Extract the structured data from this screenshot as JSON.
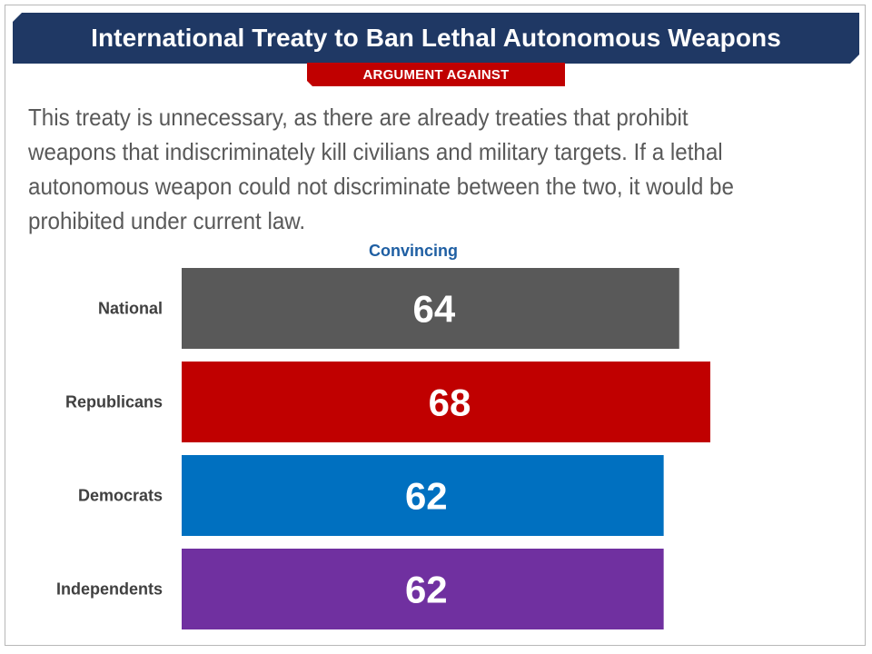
{
  "title": "International Treaty to Ban Lethal Autonomous Weapons",
  "subtitle": "ARGUMENT AGAINST",
  "argument_text": "This treaty is unnecessary, as there are already treaties that prohibit weapons that indiscriminately kill civilians and military targets. If a lethal autonomous weapon could not discriminate between the two, it would be prohibited under current law.",
  "colors": {
    "banner": "#1f3864",
    "tab": "#c00000",
    "header_text": "#1f5fa3"
  },
  "chart_data": {
    "type": "bar",
    "orientation": "horizontal",
    "column_header": "Convincing",
    "categories": [
      "National",
      "Republicans",
      "Democrats",
      "Independents"
    ],
    "values": [
      64,
      68,
      62,
      62
    ],
    "colors": [
      "#595959",
      "#c00000",
      "#0070c0",
      "#7030a0"
    ],
    "xlim": [
      0,
      68
    ],
    "grid": false,
    "legend": "none"
  }
}
